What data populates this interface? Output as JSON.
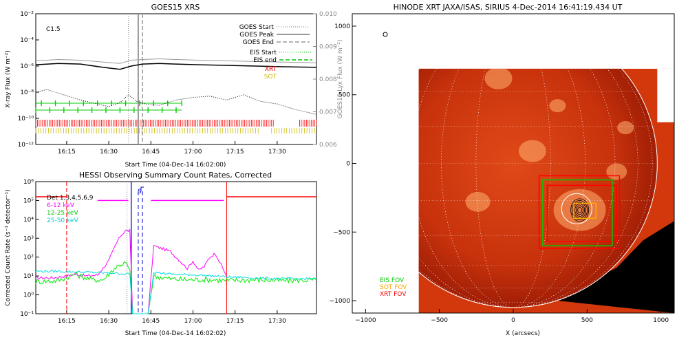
{
  "chart_data": [
    {
      "type": "line",
      "title": "GOES15 XRS",
      "flare_class": "C1.5",
      "ylabel": "X-ray Flux (W m⁻²)",
      "y2label": "GOES15 Lyx Flux (W m⁻²)",
      "xlabel": "Start Time (04-Dec-14 16:02:00)",
      "ylim_log": [
        -12,
        -2
      ],
      "y_ticks": [
        "10⁻¹²",
        "10⁻¹⁰",
        "10⁻⁸",
        "10⁻⁶",
        "10⁻⁴",
        "10⁻²"
      ],
      "y2_ticks": [
        "0.006",
        "0.007",
        "0.008",
        "0.009",
        "0.010"
      ],
      "x_ticks": [
        "16:15",
        "16:30",
        "16:45",
        "17:00",
        "17:15",
        "17:30"
      ],
      "xlim_minutes": [
        2,
        102
      ],
      "goes_start_min": 35,
      "goes_peak_min": 38.5,
      "goes_end_min": 40,
      "eis_windows": [
        [
          2,
          54
        ]
      ],
      "xrt_windows": [
        [
          2,
          87
        ],
        [
          96,
          102
        ]
      ],
      "sot_windows": [
        [
          2,
          82
        ],
        [
          86,
          102
        ]
      ],
      "series": [
        {
          "name": "long channel (upper)",
          "color": "#999999",
          "x": [
            2,
            10,
            18,
            26,
            32,
            36,
            40,
            46,
            52,
            60,
            70,
            80,
            90,
            102
          ],
          "log_values": [
            -5.6,
            -5.5,
            -5.55,
            -5.7,
            -5.8,
            -5.55,
            -5.5,
            -5.45,
            -5.5,
            -5.55,
            -5.6,
            -5.65,
            -5.7,
            -5.75
          ]
        },
        {
          "name": "long channel",
          "color": "#000000",
          "x": [
            2,
            10,
            18,
            26,
            32,
            36,
            40,
            46,
            52,
            60,
            70,
            80,
            90,
            102
          ],
          "log_values": [
            -5.9,
            -5.8,
            -5.85,
            -6.1,
            -6.25,
            -6.0,
            -5.85,
            -5.8,
            -5.85,
            -5.9,
            -5.95,
            -6.0,
            -6.05,
            -6.1
          ]
        },
        {
          "name": "short channel",
          "color": "#000000",
          "x": [
            2,
            6,
            12,
            18,
            24,
            28,
            32,
            35,
            38,
            41,
            46,
            52,
            58,
            64,
            70,
            76,
            82,
            88,
            94,
            100,
            102
          ],
          "log_values": [
            -8.0,
            -7.8,
            -8.2,
            -8.6,
            -8.9,
            -9.1,
            -8.8,
            -8.2,
            -8.7,
            -8.9,
            -9.0,
            -8.6,
            -8.4,
            -8.3,
            -8.6,
            -8.2,
            -8.7,
            -8.9,
            -9.3,
            -9.6,
            -9.7
          ]
        }
      ],
      "legend": [
        "GOES Start",
        "GOES Peak",
        "GOES End",
        "EIS Start",
        "EIS end",
        "XRT",
        "SOT"
      ],
      "legend_colors": [
        "#777777",
        "#999999",
        "#999999",
        "#00cc00",
        "#00cc00",
        "#ff0000",
        "#ccbb00"
      ]
    },
    {
      "type": "line",
      "title": "HESSI Observing Summary Count Rates, Corrected",
      "ylabel": "Corrected Count Rate (s⁻¹ detector⁻¹)",
      "xlabel": "Start Time (04-Dec-14 16:02:02)",
      "ylim_log": [
        -1,
        6
      ],
      "y_ticks": [
        "10⁻¹",
        "10⁰",
        "10¹",
        "10²",
        "10³",
        "10⁴",
        "10⁵",
        "10⁶"
      ],
      "x_ticks": [
        "16:15",
        "16:30",
        "16:45",
        "17:00",
        "17:15",
        "17:30"
      ],
      "xlim_minutes": [
        2,
        102
      ],
      "night_start_min": 13,
      "night_end_min": 70,
      "saa_label": "S",
      "saa_minutes": [
        36,
        40
      ],
      "dashed_blue_minutes": [
        38.5,
        40
      ],
      "data_gap": [
        37,
        42
      ],
      "detectors": "Det 1,3,4,5,6,9",
      "series": [
        {
          "name": "6-12 keV",
          "color": "#ff00ff",
          "x": [
            2,
            8,
            13,
            16,
            20,
            24,
            28,
            30,
            32,
            34,
            35.5,
            36.5,
            42,
            44,
            50,
            54,
            56,
            58,
            60,
            62,
            64,
            66,
            70
          ],
          "log_values": [
            0.9,
            0.9,
            1.0,
            1.1,
            1.0,
            1.05,
            1.8,
            2.5,
            3.1,
            3.4,
            3.4,
            -1,
            -1,
            2.6,
            2.3,
            1.7,
            1.4,
            1.8,
            1.3,
            1.5,
            2.0,
            2.2,
            1.0
          ]
        },
        {
          "name": "12-25 keV",
          "color": "#00ee00",
          "x": [
            2,
            10,
            16,
            22,
            26,
            28,
            30,
            32,
            34,
            35.5,
            36.5,
            42,
            44,
            50,
            56,
            62,
            66,
            70,
            80,
            90,
            102
          ],
          "log_values": [
            0.7,
            0.75,
            1.1,
            0.8,
            0.8,
            1.1,
            1.4,
            1.6,
            1.7,
            1.3,
            -1,
            -1,
            1.0,
            0.85,
            0.8,
            0.8,
            0.8,
            0.75,
            0.8,
            0.75,
            0.8
          ]
        },
        {
          "name": "25-50 keV",
          "color": "#00dddd",
          "x": [
            2,
            10,
            20,
            30,
            35.5,
            36.5,
            42,
            44,
            50,
            60,
            70,
            80,
            90,
            102
          ],
          "log_values": [
            1.25,
            1.25,
            1.2,
            1.15,
            1.1,
            -1,
            -1,
            1.2,
            1.1,
            1.05,
            0.95,
            0.9,
            0.85,
            0.85
          ]
        }
      ],
      "attenuator_series": [
        {
          "color": "#ff00ff",
          "x": [
            24,
            35
          ],
          "log_value": 5.0
        },
        {
          "color": "#ff00ff",
          "x": [
            43,
            69
          ],
          "log_value": 5.0
        },
        {
          "color": "#ff0000",
          "x": [
            2,
            13
          ],
          "log_value": 5.2
        },
        {
          "color": "#ff0000",
          "x": [
            70,
            102
          ],
          "log_value": 5.2
        }
      ]
    },
    {
      "type": "heatmap",
      "title": "HINODE XRT JAXA/ISAS, SIRIUS   4-Dec-2014 16:41:19.434 UT",
      "xlabel": "X (arcsecs)",
      "x_ticks": [
        "−1000",
        "−500",
        "0",
        "500",
        "1000"
      ],
      "y_ticks": [
        "1000",
        "500",
        "0",
        "−500",
        "−1000"
      ],
      "xlim": [
        -1090,
        1090
      ],
      "ylim": [
        -1090,
        1090
      ],
      "solar_radius_arcsec": 975,
      "image_extent_x": [
        -640,
        1090
      ],
      "image_extent_y": [
        -1090,
        690
      ],
      "legend": [
        "EIS FOV",
        "SOT FOV",
        "XRT FOV"
      ],
      "legend_colors": [
        "#00cc00",
        "#ffaa00",
        "#ff0000"
      ],
      "fov_boxes": [
        {
          "name": "XRT FOV",
          "color": "#ff0000",
          "x": [
            175,
            720
          ],
          "y": [
            -620,
            -90
          ]
        },
        {
          "name": "XRT FOV",
          "color": "#ff0000",
          "x": [
            230,
            700
          ],
          "y": [
            -570,
            -160
          ]
        },
        {
          "name": "EIS FOV",
          "color": "#00cc00",
          "x": [
            200,
            670
          ],
          "y": [
            -600,
            -120
          ]
        },
        {
          "name": "SOT FOV",
          "color": "#ffaa00",
          "x": [
            410,
            560
          ],
          "y": [
            -400,
            -290
          ]
        }
      ],
      "active_region_center": [
        450,
        -340
      ]
    }
  ]
}
